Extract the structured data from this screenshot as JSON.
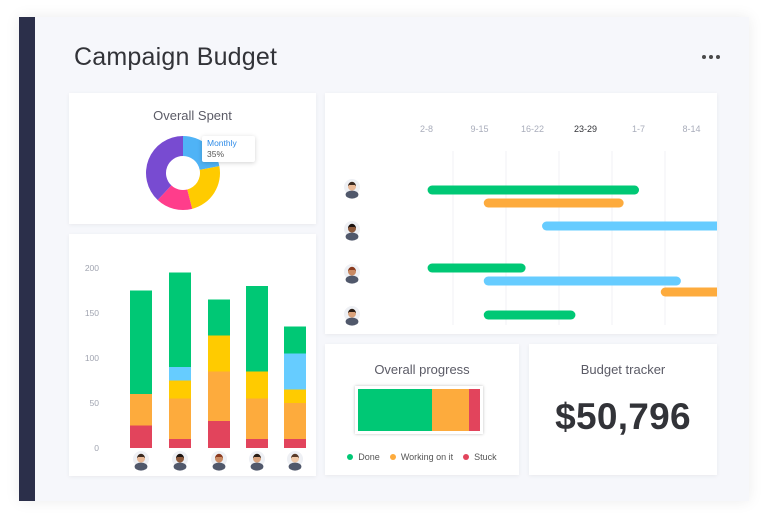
{
  "page": {
    "title": "Campaign Budget",
    "menu_icon": "more-horizontal-icon"
  },
  "overall_spent": {
    "title": "Overall Spent",
    "tooltip": {
      "label": "Monthly",
      "value": "35%"
    },
    "slices": [
      {
        "value": 22,
        "color": "#4fb3f6"
      },
      {
        "value": 24,
        "color": "#ffcb00"
      },
      {
        "value": 16,
        "color": "#ff3d8b"
      },
      {
        "value": 38,
        "color": "#784bd1"
      }
    ]
  },
  "chart_data": {
    "type": "bar",
    "stacked": true,
    "yticks": [
      0,
      50,
      100,
      150,
      200
    ],
    "ylim": [
      0,
      200
    ],
    "grid": false,
    "categories": [
      "person-1",
      "person-2",
      "person-3",
      "person-4",
      "person-5"
    ],
    "series": [
      {
        "color": "#e2445c",
        "values": [
          25,
          10,
          30,
          10,
          10
        ]
      },
      {
        "color": "#fdab3d",
        "values": [
          35,
          45,
          55,
          45,
          40
        ]
      },
      {
        "color": "#ffcb00",
        "values": [
          0,
          20,
          40,
          30,
          15
        ]
      },
      {
        "color": "#66ccff",
        "values": [
          0,
          15,
          0,
          0,
          40
        ]
      },
      {
        "color": "#00c875",
        "values": [
          115,
          105,
          40,
          95,
          30
        ]
      }
    ]
  },
  "timeline": {
    "weeks": [
      "2-8",
      "9-15",
      "16-22",
      "23-29",
      "1-7",
      "8-14"
    ],
    "current_week_index": 3,
    "rows": [
      {
        "avatar": "avatar-person-1",
        "bars": [
          {
            "start": 0.52,
            "end": 4.51,
            "color": "#00c875"
          },
          {
            "start": 1.58,
            "end": 4.22,
            "color": "#fdab3d"
          }
        ]
      },
      {
        "avatar": "avatar-person-2",
        "bars": [
          {
            "start": 2.68,
            "end": 6.48,
            "color": "#66ccff"
          }
        ]
      },
      {
        "avatar": "avatar-person-3",
        "bars": [
          {
            "start": 0.52,
            "end": 2.37,
            "color": "#00c875"
          },
          {
            "start": 1.58,
            "end": 5.3,
            "color": "#66ccff"
          },
          {
            "start": 4.92,
            "end": 6.1,
            "color": "#fdab3d"
          }
        ]
      },
      {
        "avatar": "avatar-person-4",
        "bars": [
          {
            "start": 1.58,
            "end": 3.31,
            "color": "#00c875"
          }
        ]
      }
    ]
  },
  "overall_progress": {
    "title": "Overall progress",
    "segments": [
      {
        "label": "Done",
        "value": 61,
        "color": "#00c875"
      },
      {
        "label": "Working on it",
        "value": 30,
        "color": "#fdab3d"
      },
      {
        "label": "Stuck",
        "value": 9,
        "color": "#e2445c"
      }
    ]
  },
  "budget_tracker": {
    "title": "Budget tracker",
    "value": "$50,796"
  }
}
